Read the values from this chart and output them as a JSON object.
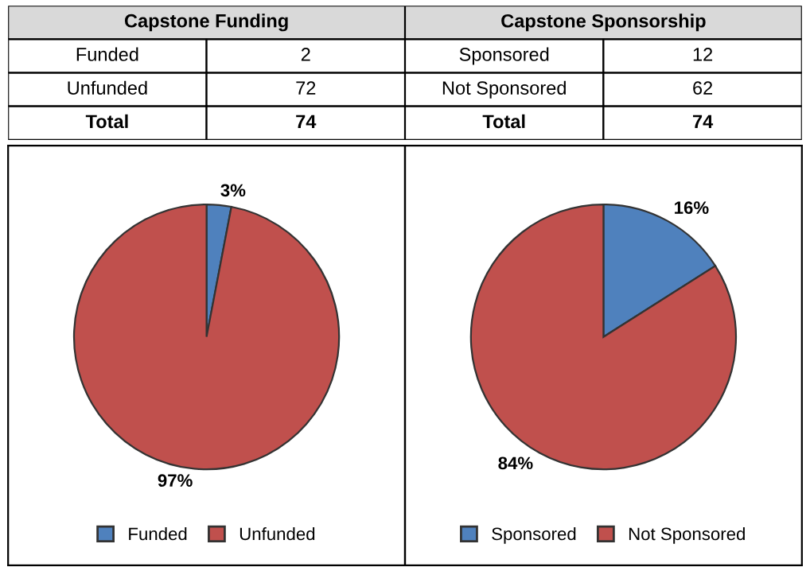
{
  "chart_data": [
    {
      "type": "pie",
      "title": "Capstone Funding",
      "categories": [
        "Funded",
        "Unfunded"
      ],
      "values": [
        3,
        97
      ],
      "colors": [
        "#4f81bd",
        "#c0504d"
      ],
      "value_labels": [
        "3%",
        "97%"
      ],
      "annotations": [
        "2",
        "72",
        "Total",
        "74"
      ],
      "legend": "bottom"
    },
    {
      "type": "pie",
      "title": "Capstone Sponsorship",
      "categories": [
        "Sponsored",
        "Not Sponsored"
      ],
      "values": [
        16,
        84
      ],
      "colors": [
        "#4f81bd",
        "#c0504d"
      ],
      "value_labels": [
        "16%",
        "84%"
      ],
      "annotations": [
        "12",
        "62",
        "Total",
        "74"
      ],
      "legend": "bottom"
    }
  ]
}
